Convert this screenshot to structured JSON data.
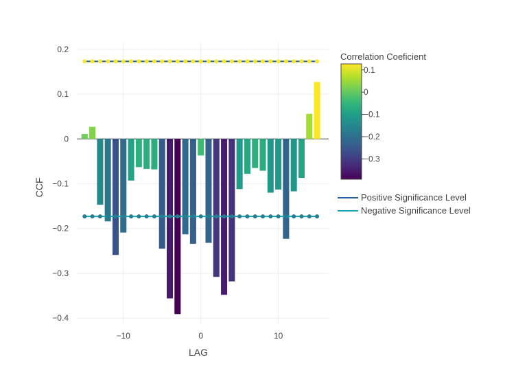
{
  "chart_data": {
    "type": "bar",
    "xlabel": "LAG",
    "ylabel": "CCF",
    "xlim": [
      -16,
      16.5
    ],
    "ylim": [
      -0.415,
      0.215
    ],
    "x_ticks": [
      -10,
      0,
      10
    ],
    "x_tick_labels": [
      "−10",
      "0",
      "10"
    ],
    "y_ticks": [
      0.2,
      0.1,
      0,
      -0.1,
      -0.2,
      -0.3,
      -0.4
    ],
    "y_tick_labels": [
      "0.2",
      "0.1",
      "0",
      "−0.1",
      "−0.2",
      "−0.3",
      "−0.4"
    ],
    "grid": true,
    "bars": {
      "x": [
        -15,
        -14,
        -13,
        -12,
        -11,
        -10,
        -9,
        -8,
        -7,
        -6,
        -5,
        -4,
        -3,
        -2,
        -1,
        0,
        1,
        2,
        3,
        4,
        5,
        6,
        7,
        8,
        9,
        10,
        11,
        12,
        13,
        14,
        15
      ],
      "values": [
        0.011,
        0.027,
        -0.147,
        -0.184,
        -0.259,
        -0.209,
        -0.093,
        -0.063,
        -0.067,
        -0.068,
        -0.245,
        -0.356,
        -0.391,
        -0.213,
        -0.234,
        -0.037,
        -0.232,
        -0.308,
        -0.348,
        -0.318,
        -0.112,
        -0.078,
        -0.065,
        -0.071,
        -0.12,
        -0.113,
        -0.223,
        -0.117,
        -0.087,
        0.056,
        0.127
      ]
    },
    "colorbar": {
      "title": "Correlation Coeficient",
      "min": -0.391,
      "max": 0.127,
      "ticks": [
        0.1,
        0,
        -0.1,
        -0.2,
        -0.3
      ],
      "tick_labels": [
        "0.1",
        "0",
        "−0.1",
        "−0.2",
        "−0.3"
      ],
      "colorscale": [
        "#440154",
        "#482878",
        "#3e4989",
        "#31688e",
        "#26828e",
        "#1f9e89",
        "#35b779",
        "#6ece58",
        "#b5de2b",
        "#fde725"
      ]
    },
    "lines": [
      {
        "name": "Positive Significance Level",
        "y": 0.173,
        "color": "#1f5fa0"
      },
      {
        "name": "Negative Significance Level",
        "y": -0.173,
        "color": "#17a2b8"
      }
    ],
    "legend_position": "right"
  }
}
